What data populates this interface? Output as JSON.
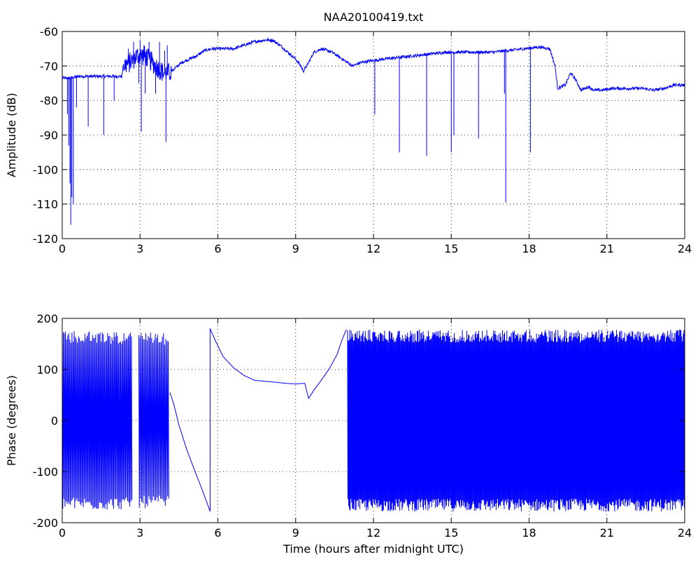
{
  "figure_title": "NAA20100419.txt",
  "colors": {
    "series": "#0000ff",
    "axes": "#000000",
    "background": "#ffffff"
  },
  "chart_data": [
    {
      "type": "line",
      "title": "NAA20100419.txt",
      "xlabel": "",
      "ylabel": "Amplitude (dB)",
      "xlim": [
        0,
        24
      ],
      "ylim": [
        -120,
        -60
      ],
      "xticks": [
        0,
        3,
        6,
        9,
        12,
        15,
        18,
        21,
        24
      ],
      "yticks": [
        -120,
        -110,
        -100,
        -90,
        -80,
        -70,
        -60
      ],
      "grid": true,
      "series": [
        {
          "color": "#0000ff",
          "baseline": [
            [
              0,
              -73.5
            ],
            [
              0.3,
              -73.5
            ],
            [
              0.6,
              -73
            ],
            [
              1.0,
              -73
            ],
            [
              1.5,
              -73
            ],
            [
              2.0,
              -73
            ],
            [
              2.3,
              -73
            ],
            [
              2.35,
              -70
            ],
            [
              2.6,
              -69
            ],
            [
              2.9,
              -67
            ],
            [
              3.2,
              -67
            ],
            [
              3.6,
              -70
            ],
            [
              3.9,
              -72
            ],
            [
              4.1,
              -72
            ],
            [
              4.3,
              -71
            ],
            [
              4.6,
              -69
            ],
            [
              4.9,
              -68
            ],
            [
              5.2,
              -67
            ],
            [
              5.5,
              -65.5
            ],
            [
              5.8,
              -65
            ],
            [
              6.2,
              -65
            ],
            [
              6.6,
              -65
            ],
            [
              7.0,
              -64
            ],
            [
              7.4,
              -63
            ],
            [
              7.8,
              -62.5
            ],
            [
              8.1,
              -62.5
            ],
            [
              8.4,
              -64
            ],
            [
              8.7,
              -66
            ],
            [
              9.0,
              -68
            ],
            [
              9.2,
              -70
            ],
            [
              9.3,
              -71.5
            ],
            [
              9.5,
              -69
            ],
            [
              9.7,
              -66
            ],
            [
              10.0,
              -65
            ],
            [
              10.4,
              -66
            ],
            [
              10.8,
              -68
            ],
            [
              11.2,
              -70
            ],
            [
              11.5,
              -69
            ],
            [
              11.9,
              -68.5
            ],
            [
              12.4,
              -68
            ],
            [
              13.0,
              -67.5
            ],
            [
              13.6,
              -67
            ],
            [
              14.2,
              -66.5
            ],
            [
              14.8,
              -66
            ],
            [
              15.4,
              -66
            ],
            [
              16.0,
              -66
            ],
            [
              16.6,
              -66
            ],
            [
              17.2,
              -65.5
            ],
            [
              17.8,
              -65
            ],
            [
              18.4,
              -64.5
            ],
            [
              18.8,
              -65
            ],
            [
              19.0,
              -70
            ],
            [
              19.1,
              -76.5
            ],
            [
              19.4,
              -75.5
            ],
            [
              19.6,
              -72
            ],
            [
              19.8,
              -74
            ],
            [
              20.0,
              -77
            ],
            [
              20.3,
              -76
            ],
            [
              20.5,
              -77
            ],
            [
              20.8,
              -77
            ],
            [
              21.2,
              -76.5
            ],
            [
              21.8,
              -76.5
            ],
            [
              22.4,
              -76.5
            ],
            [
              22.8,
              -77
            ],
            [
              23.2,
              -76.5
            ],
            [
              23.6,
              -75.5
            ],
            [
              24.0,
              -75.5
            ]
          ],
          "dips": [
            [
              0.2,
              -84
            ],
            [
              0.25,
              -93
            ],
            [
              0.3,
              -104
            ],
            [
              0.33,
              -116
            ],
            [
              0.37,
              -108
            ],
            [
              0.43,
              -110
            ],
            [
              0.55,
              -82
            ],
            [
              1.0,
              -87.5
            ],
            [
              1.6,
              -90
            ],
            [
              2.0,
              -80
            ],
            [
              2.95,
              -75
            ],
            [
              3.05,
              -89
            ],
            [
              3.2,
              -78
            ],
            [
              3.6,
              -78
            ],
            [
              4.0,
              -92
            ],
            [
              12.05,
              -84
            ],
            [
              13.0,
              -95
            ],
            [
              14.05,
              -96
            ],
            [
              15.0,
              -95
            ],
            [
              15.1,
              -90
            ],
            [
              16.05,
              -91
            ],
            [
              17.05,
              -78
            ],
            [
              17.1,
              -109.5
            ],
            [
              18.05,
              -95
            ]
          ],
          "spikes": [
            [
              2.55,
              -65
            ],
            [
              2.75,
              -63
            ],
            [
              3.0,
              -62.5
            ],
            [
              3.15,
              -64
            ],
            [
              3.35,
              -63
            ],
            [
              3.45,
              -66
            ],
            [
              3.75,
              -63
            ],
            [
              3.95,
              -65.5
            ],
            [
              4.05,
              -64
            ]
          ]
        }
      ]
    },
    {
      "type": "line",
      "title": "",
      "xlabel": "Time (hours after midnight UTC)",
      "ylabel": "Phase (degrees)",
      "xlim": [
        0,
        24
      ],
      "ylim": [
        -200,
        200
      ],
      "xticks": [
        0,
        3,
        6,
        9,
        12,
        15,
        18,
        21,
        24
      ],
      "yticks": [
        -200,
        -100,
        0,
        100,
        200
      ],
      "grid": true,
      "series": [
        {
          "color": "#0000ff",
          "wrap_segments": [
            {
              "from": 0,
              "to": 2.7,
              "wraps_per_hour": 24,
              "min": -175,
              "max": 175
            },
            {
              "from": 2.95,
              "to": 4.15,
              "wraps_per_hour": 22,
              "min": -172,
              "max": 172
            }
          ],
          "gaps": [
            [
              2.7,
              2.95
            ]
          ],
          "smooth": [
            [
              4.15,
              55
            ],
            [
              4.3,
              30
            ],
            [
              4.5,
              -10
            ],
            [
              4.8,
              -55
            ],
            [
              5.1,
              -95
            ],
            [
              5.4,
              -135
            ],
            [
              5.7,
              -178
            ],
            [
              5.7,
              180
            ],
            [
              5.9,
              155
            ],
            [
              6.2,
              125
            ],
            [
              6.6,
              103
            ],
            [
              7.0,
              90
            ],
            [
              7.4,
              80
            ],
            [
              7.8,
              78
            ],
            [
              8.2,
              76
            ],
            [
              8.6,
              72
            ],
            [
              9.0,
              70
            ],
            [
              9.2,
              72
            ],
            [
              9.35,
              75
            ],
            [
              9.5,
              45
            ],
            [
              9.7,
              60
            ],
            [
              10.0,
              80
            ],
            [
              10.3,
              100
            ],
            [
              10.6,
              130
            ],
            [
              10.8,
              160
            ],
            [
              10.95,
              178
            ]
          ],
          "dense_segment": {
            "from": 11.0,
            "to": 24,
            "wraps_per_hour": 35,
            "min": -178,
            "max": 178
          }
        }
      ]
    }
  ]
}
